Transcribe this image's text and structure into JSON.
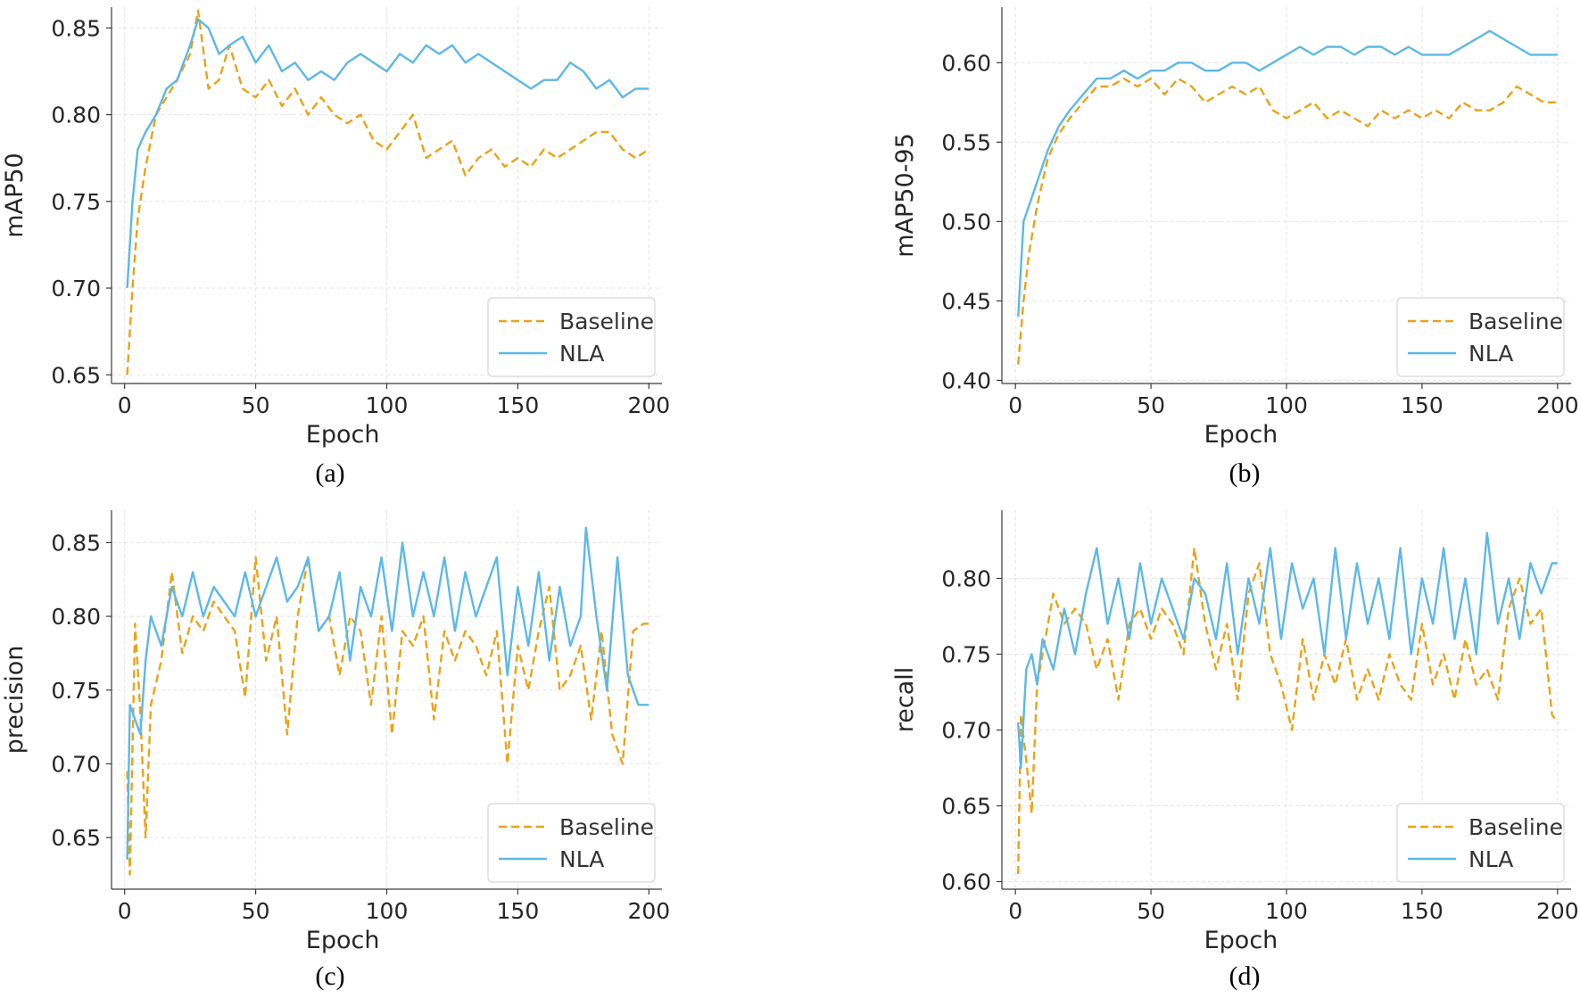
{
  "figure": {
    "colors": {
      "baseline": "#E8A317",
      "nla": "#5DB8E6"
    }
  },
  "chart_data": [
    {
      "type": "line",
      "panel": "(a)",
      "xlabel": "Epoch",
      "ylabel": "mAP50",
      "xlim": [
        -5,
        205
      ],
      "ylim": [
        0.645,
        0.862
      ],
      "xticks": [
        0,
        50,
        100,
        150,
        200
      ],
      "yticks": [
        0.65,
        0.7,
        0.75,
        0.8,
        0.85
      ],
      "ytick_labels": [
        "0.65",
        "0.70",
        "0.75",
        "0.80",
        "0.85"
      ],
      "legend": {
        "position": "lower-right",
        "entries": [
          "Baseline",
          "NLA"
        ]
      },
      "grid": true,
      "series": [
        {
          "name": "Baseline",
          "style": "dashed",
          "x": [
            1,
            3,
            5,
            8,
            12,
            16,
            20,
            25,
            28,
            32,
            36,
            40,
            45,
            50,
            55,
            60,
            65,
            70,
            75,
            80,
            85,
            90,
            95,
            100,
            105,
            110,
            115,
            120,
            125,
            130,
            135,
            140,
            145,
            150,
            155,
            160,
            165,
            170,
            175,
            180,
            185,
            190,
            195,
            200
          ],
          "values": [
            0.65,
            0.7,
            0.74,
            0.77,
            0.8,
            0.81,
            0.82,
            0.835,
            0.86,
            0.815,
            0.82,
            0.84,
            0.815,
            0.81,
            0.82,
            0.805,
            0.815,
            0.8,
            0.81,
            0.8,
            0.795,
            0.8,
            0.785,
            0.78,
            0.79,
            0.8,
            0.775,
            0.78,
            0.785,
            0.765,
            0.775,
            0.78,
            0.77,
            0.775,
            0.77,
            0.78,
            0.775,
            0.78,
            0.785,
            0.79,
            0.79,
            0.78,
            0.775,
            0.78
          ]
        },
        {
          "name": "NLA",
          "style": "solid",
          "x": [
            1,
            3,
            5,
            8,
            12,
            16,
            20,
            25,
            28,
            32,
            36,
            40,
            45,
            50,
            55,
            60,
            65,
            70,
            75,
            80,
            85,
            90,
            95,
            100,
            105,
            110,
            115,
            120,
            125,
            130,
            135,
            140,
            145,
            150,
            155,
            160,
            165,
            170,
            175,
            180,
            185,
            190,
            195,
            200
          ],
          "values": [
            0.7,
            0.75,
            0.78,
            0.79,
            0.8,
            0.815,
            0.82,
            0.84,
            0.855,
            0.85,
            0.835,
            0.84,
            0.845,
            0.83,
            0.84,
            0.825,
            0.83,
            0.82,
            0.825,
            0.82,
            0.83,
            0.835,
            0.83,
            0.825,
            0.835,
            0.83,
            0.84,
            0.835,
            0.84,
            0.83,
            0.835,
            0.83,
            0.825,
            0.82,
            0.815,
            0.82,
            0.82,
            0.83,
            0.825,
            0.815,
            0.82,
            0.81,
            0.815,
            0.815
          ]
        }
      ]
    },
    {
      "type": "line",
      "panel": "(b)",
      "xlabel": "Epoch",
      "ylabel": "mAP50-95",
      "xlim": [
        -5,
        205
      ],
      "ylim": [
        0.398,
        0.635
      ],
      "xticks": [
        0,
        50,
        100,
        150,
        200
      ],
      "yticks": [
        0.4,
        0.45,
        0.5,
        0.55,
        0.6
      ],
      "ytick_labels": [
        "0.40",
        "0.45",
        "0.50",
        "0.55",
        "0.60"
      ],
      "legend": {
        "position": "lower-right",
        "entries": [
          "Baseline",
          "NLA"
        ]
      },
      "grid": true,
      "series": [
        {
          "name": "Baseline",
          "style": "dashed",
          "x": [
            1,
            3,
            5,
            8,
            12,
            16,
            20,
            25,
            30,
            35,
            40,
            45,
            50,
            55,
            60,
            65,
            70,
            75,
            80,
            85,
            90,
            95,
            100,
            105,
            110,
            115,
            120,
            125,
            130,
            135,
            140,
            145,
            150,
            155,
            160,
            165,
            170,
            175,
            180,
            185,
            190,
            195,
            200
          ],
          "values": [
            0.41,
            0.45,
            0.48,
            0.51,
            0.54,
            0.555,
            0.565,
            0.575,
            0.585,
            0.585,
            0.59,
            0.585,
            0.59,
            0.58,
            0.59,
            0.585,
            0.575,
            0.58,
            0.585,
            0.58,
            0.585,
            0.57,
            0.565,
            0.57,
            0.575,
            0.565,
            0.57,
            0.565,
            0.56,
            0.57,
            0.565,
            0.57,
            0.565,
            0.57,
            0.565,
            0.575,
            0.57,
            0.57,
            0.575,
            0.585,
            0.58,
            0.575,
            0.575
          ]
        },
        {
          "name": "NLA",
          "style": "solid",
          "x": [
            1,
            3,
            5,
            8,
            12,
            16,
            20,
            25,
            30,
            35,
            40,
            45,
            50,
            55,
            60,
            65,
            70,
            75,
            80,
            85,
            90,
            95,
            100,
            105,
            110,
            115,
            120,
            125,
            130,
            135,
            140,
            145,
            150,
            155,
            160,
            165,
            170,
            175,
            180,
            185,
            190,
            195,
            200
          ],
          "values": [
            0.44,
            0.5,
            0.51,
            0.525,
            0.545,
            0.56,
            0.57,
            0.58,
            0.59,
            0.59,
            0.595,
            0.59,
            0.595,
            0.595,
            0.6,
            0.6,
            0.595,
            0.595,
            0.6,
            0.6,
            0.595,
            0.6,
            0.605,
            0.61,
            0.605,
            0.61,
            0.61,
            0.605,
            0.61,
            0.61,
            0.605,
            0.61,
            0.605,
            0.605,
            0.605,
            0.61,
            0.615,
            0.62,
            0.615,
            0.61,
            0.605,
            0.605,
            0.605
          ]
        }
      ]
    },
    {
      "type": "line",
      "panel": "(c)",
      "xlabel": "Epoch",
      "ylabel": "precision",
      "xlim": [
        -5,
        205
      ],
      "ylim": [
        0.615,
        0.872
      ],
      "xticks": [
        0,
        50,
        100,
        150,
        200
      ],
      "yticks": [
        0.65,
        0.7,
        0.75,
        0.8,
        0.85
      ],
      "ytick_labels": [
        "0.65",
        "0.70",
        "0.75",
        "0.80",
        "0.85"
      ],
      "legend": {
        "position": "lower-right",
        "entries": [
          "Baseline",
          "NLA"
        ]
      },
      "grid": true,
      "series": [
        {
          "name": "Baseline",
          "style": "dashed",
          "x": [
            1,
            2,
            4,
            6,
            8,
            10,
            14,
            18,
            22,
            26,
            30,
            34,
            38,
            42,
            46,
            50,
            54,
            58,
            62,
            66,
            70,
            74,
            78,
            82,
            86,
            90,
            94,
            98,
            102,
            106,
            110,
            114,
            118,
            122,
            126,
            130,
            134,
            138,
            142,
            146,
            150,
            154,
            158,
            162,
            166,
            170,
            174,
            178,
            182,
            186,
            190,
            194,
            198,
            200
          ],
          "values": [
            0.695,
            0.625,
            0.795,
            0.735,
            0.65,
            0.74,
            0.77,
            0.83,
            0.775,
            0.8,
            0.79,
            0.81,
            0.8,
            0.79,
            0.745,
            0.84,
            0.77,
            0.8,
            0.72,
            0.8,
            0.84,
            0.79,
            0.8,
            0.76,
            0.8,
            0.79,
            0.74,
            0.8,
            0.72,
            0.79,
            0.78,
            0.8,
            0.73,
            0.79,
            0.77,
            0.79,
            0.78,
            0.76,
            0.79,
            0.7,
            0.78,
            0.75,
            0.79,
            0.82,
            0.75,
            0.76,
            0.78,
            0.73,
            0.79,
            0.72,
            0.7,
            0.79,
            0.795,
            0.795
          ]
        },
        {
          "name": "NLA",
          "style": "solid",
          "x": [
            1,
            2,
            4,
            6,
            8,
            10,
            14,
            18,
            22,
            26,
            30,
            34,
            38,
            42,
            46,
            50,
            54,
            58,
            62,
            66,
            70,
            74,
            78,
            82,
            86,
            90,
            94,
            98,
            102,
            106,
            110,
            114,
            118,
            122,
            126,
            130,
            134,
            138,
            142,
            146,
            150,
            154,
            158,
            162,
            166,
            170,
            174,
            176,
            180,
            184,
            188,
            192,
            196,
            200
          ],
          "values": [
            0.635,
            0.74,
            0.73,
            0.72,
            0.77,
            0.8,
            0.78,
            0.82,
            0.8,
            0.83,
            0.8,
            0.82,
            0.81,
            0.8,
            0.83,
            0.8,
            0.82,
            0.84,
            0.81,
            0.82,
            0.84,
            0.79,
            0.8,
            0.83,
            0.77,
            0.82,
            0.8,
            0.84,
            0.79,
            0.85,
            0.8,
            0.83,
            0.8,
            0.84,
            0.79,
            0.83,
            0.8,
            0.82,
            0.84,
            0.76,
            0.82,
            0.78,
            0.83,
            0.77,
            0.82,
            0.78,
            0.8,
            0.86,
            0.8,
            0.75,
            0.84,
            0.76,
            0.74,
            0.74
          ]
        }
      ]
    },
    {
      "type": "line",
      "panel": "(d)",
      "xlabel": "Epoch",
      "ylabel": "recall",
      "xlim": [
        -5,
        205
      ],
      "ylim": [
        0.595,
        0.845
      ],
      "xticks": [
        0,
        50,
        100,
        150,
        200
      ],
      "yticks": [
        0.6,
        0.65,
        0.7,
        0.75,
        0.8
      ],
      "ytick_labels": [
        "0.60",
        "0.65",
        "0.70",
        "0.75",
        "0.80"
      ],
      "legend": {
        "position": "lower-right",
        "entries": [
          "Baseline",
          "NLA"
        ]
      },
      "grid": true,
      "series": [
        {
          "name": "Baseline",
          "style": "dashed",
          "x": [
            1,
            2,
            4,
            6,
            8,
            10,
            14,
            18,
            22,
            26,
            30,
            34,
            38,
            42,
            46,
            50,
            54,
            58,
            62,
            66,
            70,
            74,
            78,
            82,
            86,
            90,
            94,
            98,
            102,
            106,
            110,
            114,
            118,
            122,
            126,
            130,
            134,
            138,
            142,
            146,
            150,
            154,
            158,
            162,
            166,
            170,
            174,
            178,
            182,
            186,
            190,
            194,
            198,
            200
          ],
          "values": [
            0.605,
            0.71,
            0.68,
            0.645,
            0.73,
            0.75,
            0.79,
            0.77,
            0.78,
            0.77,
            0.74,
            0.76,
            0.72,
            0.77,
            0.78,
            0.76,
            0.78,
            0.77,
            0.75,
            0.82,
            0.77,
            0.74,
            0.77,
            0.72,
            0.79,
            0.81,
            0.75,
            0.73,
            0.7,
            0.76,
            0.72,
            0.75,
            0.73,
            0.76,
            0.72,
            0.74,
            0.72,
            0.75,
            0.73,
            0.72,
            0.77,
            0.73,
            0.75,
            0.72,
            0.76,
            0.73,
            0.74,
            0.72,
            0.78,
            0.8,
            0.77,
            0.78,
            0.71,
            0.705
          ]
        },
        {
          "name": "NLA",
          "style": "solid",
          "x": [
            1,
            2,
            4,
            6,
            8,
            10,
            14,
            18,
            22,
            26,
            30,
            34,
            38,
            42,
            46,
            50,
            54,
            58,
            62,
            66,
            70,
            74,
            78,
            82,
            86,
            90,
            94,
            98,
            102,
            106,
            110,
            114,
            118,
            122,
            126,
            130,
            134,
            138,
            142,
            146,
            150,
            154,
            158,
            162,
            166,
            170,
            174,
            178,
            182,
            186,
            190,
            194,
            198,
            200
          ],
          "values": [
            0.705,
            0.675,
            0.74,
            0.75,
            0.73,
            0.76,
            0.74,
            0.78,
            0.75,
            0.79,
            0.82,
            0.77,
            0.8,
            0.76,
            0.81,
            0.77,
            0.8,
            0.78,
            0.76,
            0.8,
            0.79,
            0.76,
            0.81,
            0.75,
            0.8,
            0.77,
            0.82,
            0.76,
            0.81,
            0.78,
            0.8,
            0.75,
            0.82,
            0.76,
            0.81,
            0.77,
            0.8,
            0.76,
            0.82,
            0.75,
            0.8,
            0.77,
            0.82,
            0.76,
            0.8,
            0.75,
            0.83,
            0.77,
            0.8,
            0.76,
            0.81,
            0.79,
            0.81,
            0.81
          ]
        }
      ]
    }
  ]
}
